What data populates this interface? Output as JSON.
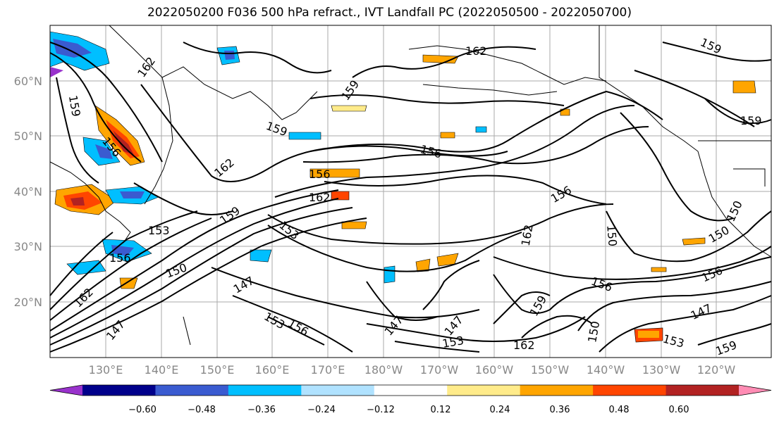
{
  "title": "2022050200 F036 500 hPa refract., IVT Landfall PC (2022050500 - 2022050700)",
  "lat_labels": [
    "60°N",
    "50°N",
    "40°N",
    "30°N",
    "20°N"
  ],
  "lon_labels": [
    "130°E",
    "140°E",
    "150°E",
    "160°E",
    "170°E",
    "180°W",
    "170°W",
    "160°W",
    "150°W",
    "140°W",
    "130°W",
    "120°W"
  ],
  "contour_labels": [
    "162",
    "159",
    "162",
    "159",
    "159",
    "156",
    "156",
    "162",
    "162",
    "156",
    "159",
    "156",
    "153",
    "153",
    "150",
    "150",
    "147",
    "147",
    "147",
    "147",
    "153",
    "156",
    "159",
    "162",
    "150",
    "153",
    "153",
    "159",
    "156",
    "156",
    "150",
    "150",
    "159",
    "159",
    "162",
    "162",
    "147",
    "156"
  ],
  "colorbar": {
    "ticks": [
      "−0.60",
      "−0.48",
      "−0.36",
      "−0.24",
      "−0.12",
      "0.12",
      "0.24",
      "0.36",
      "0.48",
      "0.60"
    ],
    "colors": [
      "#9932cc",
      "#00008b",
      "#3a5bd0",
      "#00bfff",
      "#b0e2ff",
      "#ffffff",
      "#ffeb8a",
      "#ffa500",
      "#ff4500",
      "#b22222",
      "#ff8cb4"
    ]
  }
}
